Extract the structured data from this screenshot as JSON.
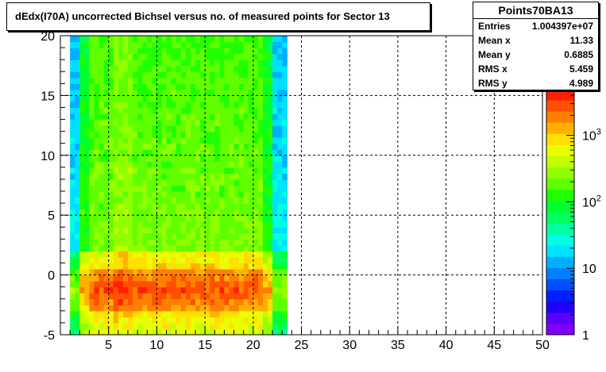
{
  "title": "dEdx(I70A) uncorrected Bichsel versus no. of measured points for Sector 13",
  "stats": {
    "name": "Points70BA13",
    "rows": [
      {
        "key": "Entries",
        "value": "1.004397e+07"
      },
      {
        "key": "Mean x",
        "value": "11.33"
      },
      {
        "key": "Mean y",
        "value": "0.6885"
      },
      {
        "key": "RMS x",
        "value": "5.459"
      },
      {
        "key": "RMS y",
        "value": "4.989"
      }
    ]
  },
  "chart_data": {
    "type": "heatmap",
    "title": "dEdx(I70A) uncorrected Bichsel versus no. of measured points for Sector 13",
    "xlabel": "",
    "ylabel": "",
    "xlim": [
      0,
      50
    ],
    "ylim": [
      -5,
      20
    ],
    "x_ticks": [
      5,
      10,
      15,
      20,
      25,
      30,
      35,
      40,
      45,
      50
    ],
    "y_ticks": [
      -5,
      0,
      5,
      10,
      15,
      20
    ],
    "x_bins": [
      1,
      23
    ],
    "z_scale": "log",
    "z_range": [
      1,
      5000
    ],
    "z_tick_labels": [
      "1",
      "10",
      "10^2",
      "10^3"
    ],
    "grid": true,
    "colormap": [
      "#8000ff",
      "#5a00ff",
      "#2000ff",
      "#0020ff",
      "#0050ff",
      "#0080ff",
      "#00b0ff",
      "#00e0ff",
      "#00ffe0",
      "#00ffa0",
      "#00ff60",
      "#00ff30",
      "#20ff00",
      "#60ff00",
      "#90ff00",
      "#c0ff00",
      "#e8ff00",
      "#ffe000",
      "#ffb000",
      "#ff8000",
      "#ff5000",
      "#ff2000"
    ]
  }
}
